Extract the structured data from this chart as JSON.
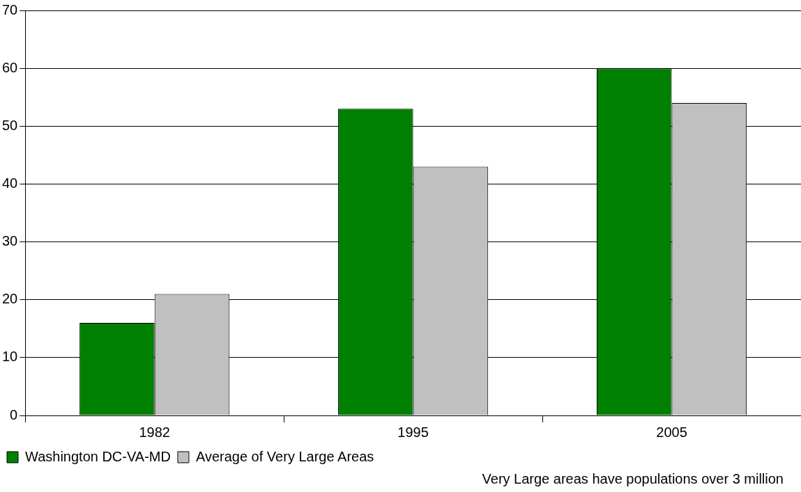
{
  "chart_data": {
    "type": "bar",
    "categories": [
      "1982",
      "1995",
      "2005"
    ],
    "series": [
      {
        "name": "Washington DC-VA-MD",
        "color": "#008000",
        "values": [
          16,
          53,
          60
        ]
      },
      {
        "name": "Average of Very Large Areas",
        "color": "#c0c0c0",
        "values": [
          21,
          43,
          54
        ]
      }
    ],
    "ylim": [
      0,
      70
    ],
    "yticks": [
      0,
      10,
      20,
      30,
      40,
      50,
      60,
      70
    ],
    "grid": "y",
    "legend": "bottom left",
    "annotations": [
      "Very Large areas have populations over 3 million"
    ]
  }
}
